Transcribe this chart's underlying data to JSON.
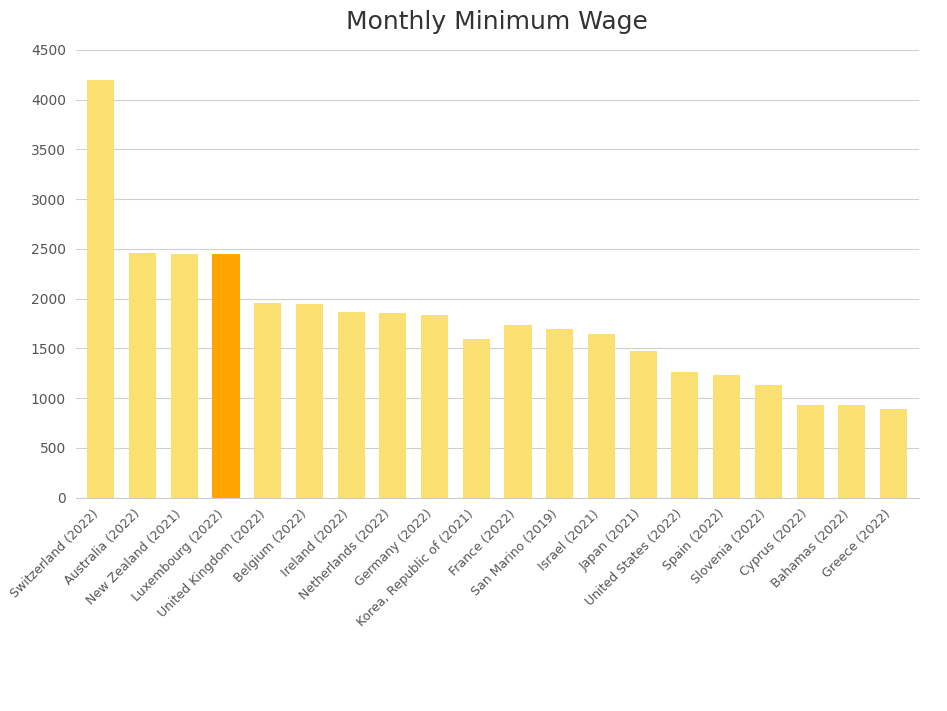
{
  "title": "Monthly Minimum Wage",
  "categories": [
    "Switzerland (2022)",
    "Australia (2022)",
    "New Zealand (2021)",
    "Luxembourg (2022)",
    "United Kingdom (2022)",
    "Belgium (2022)",
    "Ireland (2022)",
    "Netherlands (2022)",
    "Germany (2022)",
    "Korea, Republic of (2021)",
    "France (2022)",
    "San Marino (2019)",
    "Israel (2021)",
    "Japan (2021)",
    "United States (2022)",
    "Spain (2022)",
    "Slovenia (2022)",
    "Cyprus (2022)",
    "Bahamas (2022)",
    "Greece (2022)"
  ],
  "values": [
    4200,
    2460,
    2450,
    2450,
    1960,
    1950,
    1870,
    1860,
    1840,
    1590,
    1740,
    1690,
    1640,
    1475,
    1265,
    1235,
    1130,
    935,
    930,
    895
  ],
  "bar_colors": [
    "#FAE070",
    "#FAE070",
    "#FAE070",
    "#FFA500",
    "#FAE070",
    "#FAE070",
    "#FAE070",
    "#FAE070",
    "#FAE070",
    "#FAE070",
    "#FAE070",
    "#FAE070",
    "#FAE070",
    "#FAE070",
    "#FAE070",
    "#FAE070",
    "#FAE070",
    "#FAE070",
    "#FAE070",
    "#FAE070"
  ],
  "ylim": [
    0,
    4500
  ],
  "yticks": [
    0,
    500,
    1000,
    1500,
    2000,
    2500,
    3000,
    3500,
    4000,
    4500
  ],
  "background_color": "#ffffff",
  "grid_color": "#d0d0d0",
  "title_fontsize": 18,
  "bar_width": 0.65
}
